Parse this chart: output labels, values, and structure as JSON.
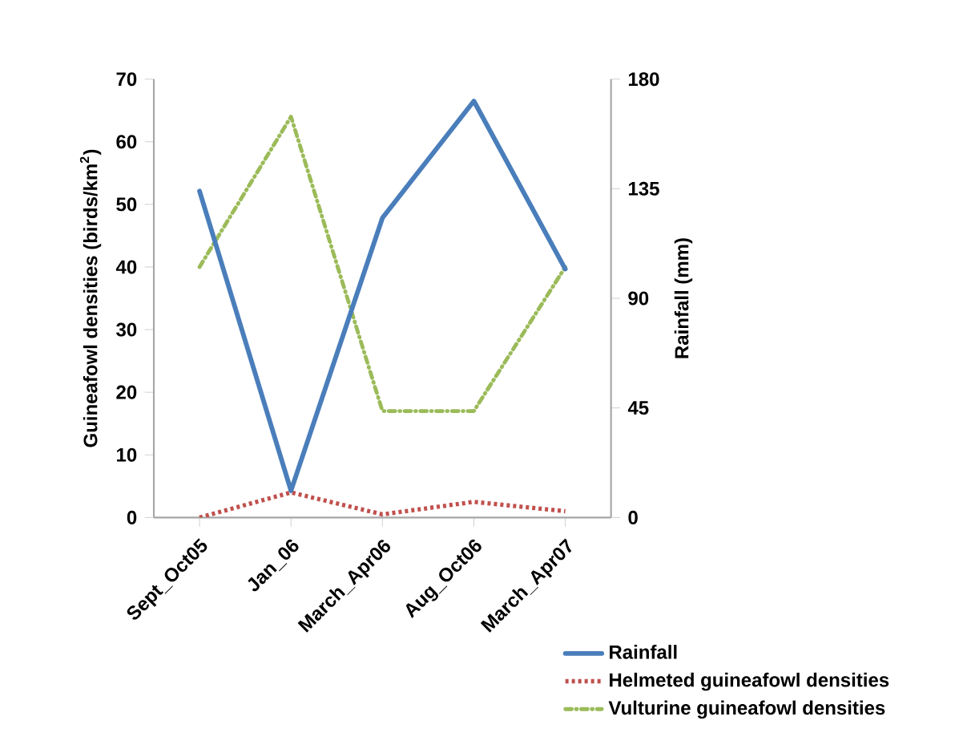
{
  "chart_data": {
    "type": "line",
    "categories": [
      "Sept_Oct05",
      "Jan_06",
      "March_Apr06",
      "Aug_Oct06",
      "March_Apr07"
    ],
    "ylabel": "Guineafowl densities (birds/km$^{2}$)",
    "y2label": "Rainfall (mm)",
    "ylim": [
      0,
      70
    ],
    "yticks": [
      0,
      10,
      20,
      30,
      40,
      50,
      60,
      70
    ],
    "y2lim": [
      0,
      180
    ],
    "y2ticks": [
      0,
      45,
      90,
      135,
      180
    ],
    "series": [
      {
        "name": "Rainfall",
        "color": "#4a7ebb",
        "axis": "y2",
        "line_style": "solid",
        "values": [
          134,
          11,
          123,
          171,
          102
        ]
      },
      {
        "name": "Helmeted guineafowl densities",
        "color": "#c0504d",
        "axis": "y",
        "line_style": "dotted",
        "values": [
          0,
          4,
          0.5,
          2.5,
          1
        ]
      },
      {
        "name": "Vulturine guineafowl densities",
        "color": "#9bbb59",
        "axis": "y",
        "line_style": "dashdot",
        "values": [
          40,
          64,
          17,
          17,
          40
        ]
      }
    ],
    "grid": false,
    "legend": "bottom right",
    "marker": "none"
  }
}
